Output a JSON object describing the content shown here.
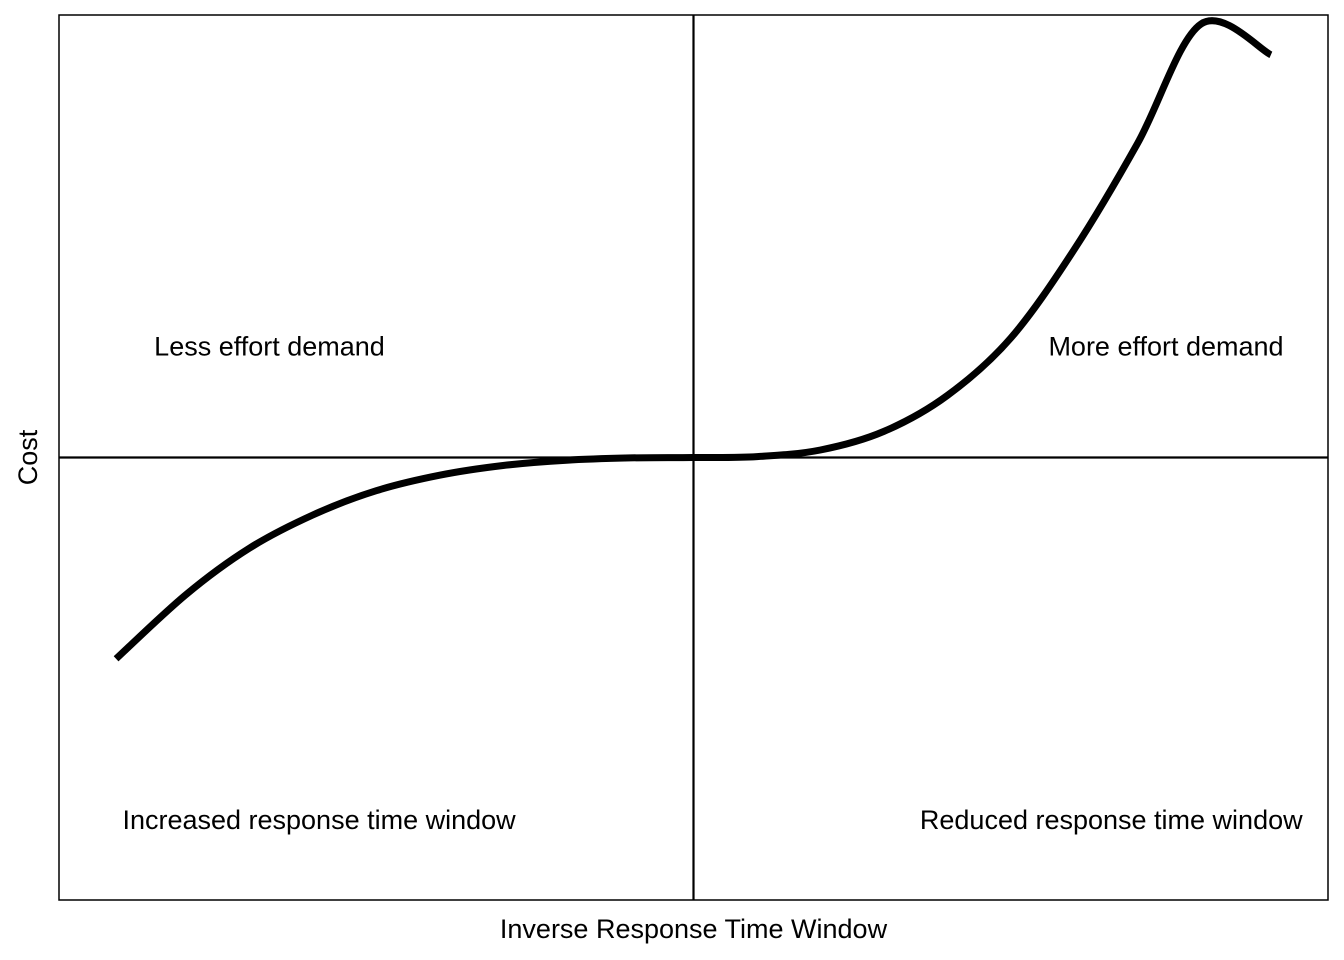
{
  "chart_data": {
    "type": "line",
    "xlabel": "Inverse Response Time Window",
    "ylabel": "Cost",
    "xlim": [
      -1,
      1
    ],
    "ylim": [
      -1,
      1
    ],
    "grid": false,
    "axis_ticks": false,
    "reference_lines": {
      "vertical_at_x": 0,
      "horizontal_at_y": 0
    },
    "line_color": "#000000",
    "curve": {
      "x": [
        -0.91,
        -0.8,
        -0.7,
        -0.6,
        -0.5,
        -0.4,
        -0.3,
        -0.2,
        -0.1,
        0.0,
        0.1,
        0.2,
        0.3,
        0.4,
        0.5,
        0.6,
        0.7,
        0.8,
        0.91
      ],
      "y": [
        -0.455,
        -0.31,
        -0.205,
        -0.13,
        -0.075,
        -0.04,
        -0.018,
        -0.006,
        -0.001,
        0.0,
        0.002,
        0.017,
        0.059,
        0.14,
        0.27,
        0.47,
        0.71,
        0.98,
        0.91
      ]
    },
    "annotations": [
      {
        "text": "Less effort demand",
        "x": -0.85,
        "y": 0.23,
        "anchor": "start"
      },
      {
        "text": "More effort demand",
        "x": 0.93,
        "y": 0.23,
        "anchor": "end"
      },
      {
        "text": "Increased response time window",
        "x": -0.9,
        "y": -0.84,
        "anchor": "start"
      },
      {
        "text": "Reduced response time window",
        "x": 0.96,
        "y": -0.84,
        "anchor": "end"
      }
    ]
  }
}
